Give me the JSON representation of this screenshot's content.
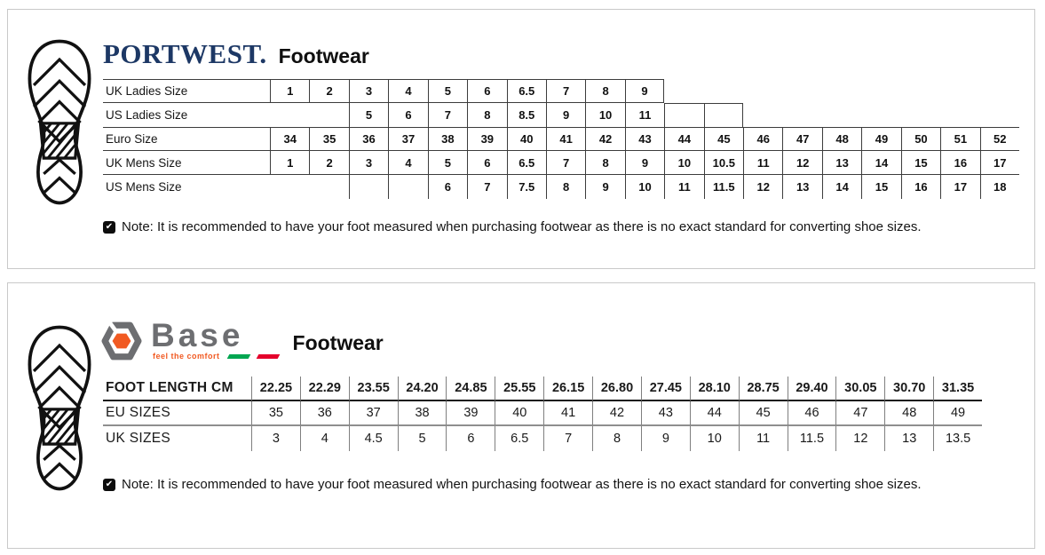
{
  "panels": {
    "portwest": {
      "brand": "PORTWEST.",
      "title": "Footwear",
      "table": {
        "rows": [
          {
            "label": "UK Ladies Size",
            "values": [
              "1",
              "2",
              "3",
              "4",
              "5",
              "6",
              "6.5",
              "7",
              "8",
              "9",
              null,
              null,
              null,
              null,
              null,
              null,
              null,
              null,
              null
            ]
          },
          {
            "label": "US Ladies Size",
            "values": [
              null,
              null,
              "5",
              "6",
              "7",
              "8",
              "8.5",
              "9",
              "10",
              "11",
              "",
              "",
              null,
              null,
              null,
              null,
              null,
              null,
              null
            ]
          },
          {
            "label": "Euro Size",
            "values": [
              "34",
              "35",
              "36",
              "37",
              "38",
              "39",
              "40",
              "41",
              "42",
              "43",
              "44",
              "45",
              "46",
              "47",
              "48",
              "49",
              "50",
              "51",
              "52"
            ]
          },
          {
            "label": "UK Mens Size",
            "values": [
              "1",
              "2",
              "3",
              "4",
              "5",
              "6",
              "6.5",
              "7",
              "8",
              "9",
              "10",
              "10.5",
              "11",
              "12",
              "13",
              "14",
              "15",
              "16",
              "17"
            ]
          },
          {
            "label": "US Mens Size",
            "values": [
              null,
              null,
              "",
              "",
              "6",
              "7",
              "7.5",
              "8",
              "9",
              "10",
              "11",
              "11.5",
              "12",
              "13",
              "14",
              "15",
              "16",
              "17",
              "18"
            ]
          }
        ]
      },
      "note": "Note: It is recommended to have your foot measured when purchasing footwear as there is no exact standard for converting shoe sizes."
    },
    "base": {
      "brand": "Base",
      "tagline": "feel the comfort",
      "title": "Footwear",
      "table": {
        "rows": [
          {
            "label": "FOOT LENGTH CM",
            "values": [
              "22.25",
              "22.29",
              "23.55",
              "24.20",
              "24.85",
              "25.55",
              "26.15",
              "26.80",
              "27.45",
              "28.10",
              "28.75",
              "29.40",
              "30.05",
              "30.70",
              "31.35"
            ]
          },
          {
            "label": "EU SIZES",
            "values": [
              "35",
              "36",
              "37",
              "38",
              "39",
              "40",
              "41",
              "42",
              "43",
              "44",
              "45",
              "46",
              "47",
              "48",
              "49"
            ]
          },
          {
            "label": "UK SIZES",
            "values": [
              "3",
              "4",
              "4.5",
              "5",
              "6",
              "6.5",
              "7",
              "8",
              "9",
              "10",
              "11",
              "11.5",
              "12",
              "13",
              "13.5"
            ]
          }
        ]
      },
      "note": "Note: It is recommended to have your foot measured when purchasing footwear as there is no exact standard for converting shoe sizes."
    }
  },
  "icons": {
    "note_icon_glyph": "✔",
    "sole_icon": "shoe-sole-print",
    "base_logo_icon": "hex-nut"
  },
  "colors": {
    "portwest_navy": "#1d3865",
    "base_gray": "#6d6e71",
    "base_orange": "#f15a22",
    "flag_green": "#00a651",
    "flag_red": "#e4002b",
    "panel_border": "#c9c9c9",
    "grid_dark": "#3c3c3c",
    "grid_gray": "#7f7f7f"
  }
}
